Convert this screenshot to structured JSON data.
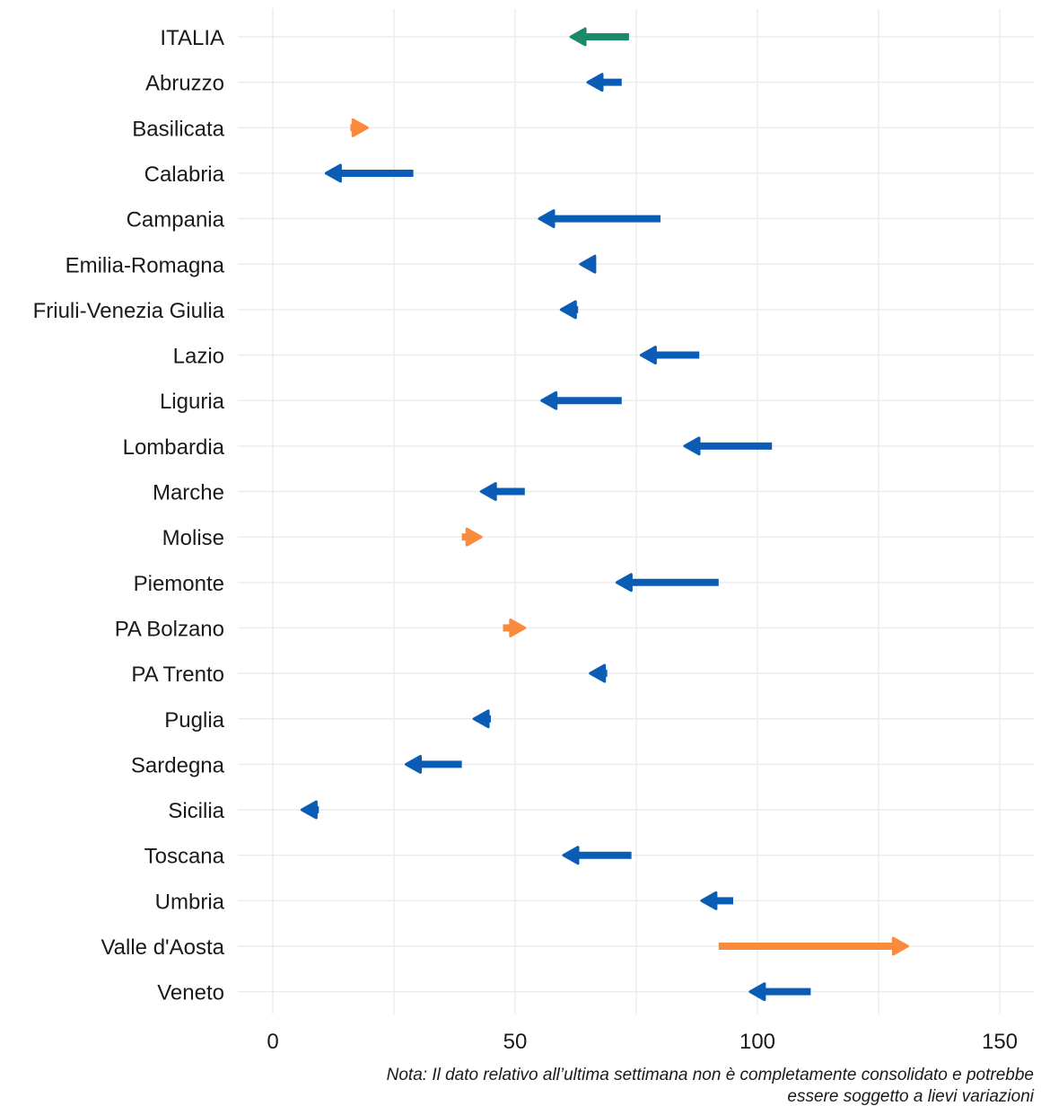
{
  "chart_data": {
    "type": "arrow",
    "xlim": [
      0,
      157
    ],
    "x_ticks": [
      "0",
      "50",
      "100",
      "150"
    ],
    "x_tick_values": [
      0,
      50,
      100,
      150
    ],
    "grid": "vertical and horizontal, light gray",
    "colors": {
      "italia": "#1b8a6b",
      "decrease": "#0a5cb5",
      "increase": "#fb8b3c"
    },
    "rows": [
      {
        "region": "ITALIA",
        "from": 73.5,
        "to": 61.5,
        "group": "italia"
      },
      {
        "region": "Abruzzo",
        "from": 72,
        "to": 65,
        "group": "decrease"
      },
      {
        "region": "Basilicata",
        "from": 16,
        "to": 19.5,
        "group": "increase"
      },
      {
        "region": "Calabria",
        "from": 29,
        "to": 11,
        "group": "decrease"
      },
      {
        "region": "Campania",
        "from": 80,
        "to": 55,
        "group": "decrease"
      },
      {
        "region": "Emilia-Romagna",
        "from": 66.5,
        "to": 63.5,
        "group": "decrease"
      },
      {
        "region": "Friuli-Venezia Giulia",
        "from": 63,
        "to": 59.5,
        "group": "decrease"
      },
      {
        "region": "Lazio",
        "from": 88,
        "to": 76,
        "group": "decrease"
      },
      {
        "region": "Liguria",
        "from": 72,
        "to": 55.5,
        "group": "decrease"
      },
      {
        "region": "Lombardia",
        "from": 103,
        "to": 85,
        "group": "decrease"
      },
      {
        "region": "Marche",
        "from": 52,
        "to": 43,
        "group": "decrease"
      },
      {
        "region": "Molise",
        "from": 39,
        "to": 43,
        "group": "increase"
      },
      {
        "region": "Piemonte",
        "from": 92,
        "to": 71,
        "group": "decrease"
      },
      {
        "region": "PA Bolzano",
        "from": 47.5,
        "to": 52,
        "group": "increase"
      },
      {
        "region": "PA Trento",
        "from": 69,
        "to": 65.5,
        "group": "decrease"
      },
      {
        "region": "Puglia",
        "from": 45,
        "to": 41.5,
        "group": "decrease"
      },
      {
        "region": "Sardegna",
        "from": 39,
        "to": 27.5,
        "group": "decrease"
      },
      {
        "region": "Sicilia",
        "from": 9.5,
        "to": 6,
        "group": "decrease"
      },
      {
        "region": "Toscana",
        "from": 74,
        "to": 60,
        "group": "decrease"
      },
      {
        "region": "Umbria",
        "from": 95,
        "to": 88.5,
        "group": "decrease"
      },
      {
        "region": "Valle d'Aosta",
        "from": 92,
        "to": 131,
        "group": "increase"
      },
      {
        "region": "Veneto",
        "from": 111,
        "to": 98.5,
        "group": "decrease"
      }
    ]
  },
  "note": {
    "line1": "Nota: Il dato relativo all’ultima settimana non è completamente consolidato e potrebbe",
    "line2": "essere soggetto a lievi variazioni"
  }
}
